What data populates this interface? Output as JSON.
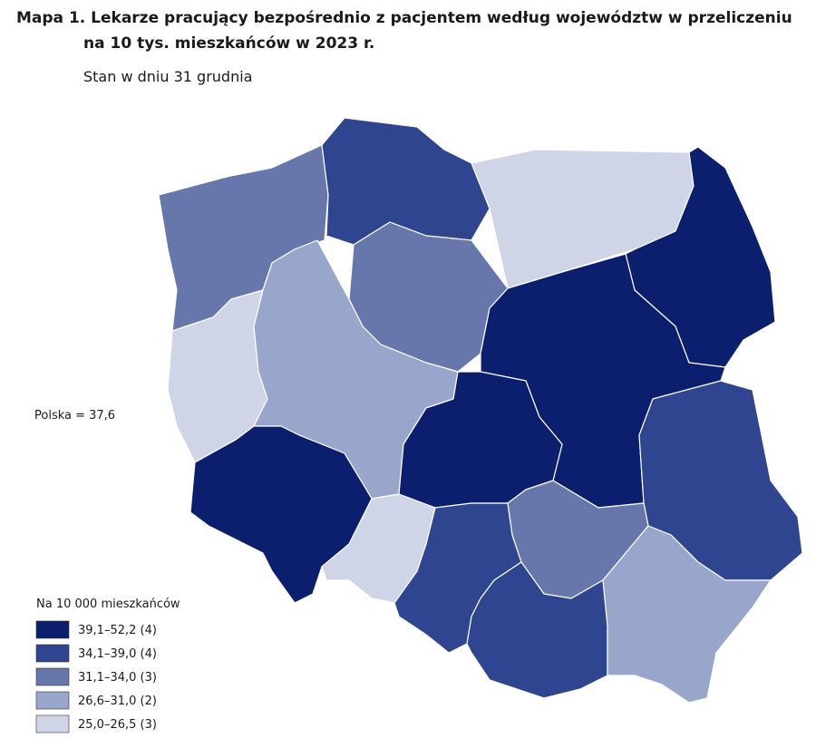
{
  "header": {
    "title_line1": "Mapa 1. Lekarze pracujący bezpośrednio z pacjentem według województw w przeliczeniu",
    "title_line2": "na 10 tys. mieszkańców w 2023 r.",
    "subtitle": "Stan w dniu 31 grudnia"
  },
  "map": {
    "note": "Polska = 37,6"
  },
  "legend": {
    "title": "Na 10 000 mieszkańców",
    "items": [
      {
        "label": "39,1–52,2 (4)",
        "color": "#0b1f6e"
      },
      {
        "label": "34,1–39,0 (4)",
        "color": "#2f4590"
      },
      {
        "label": "31,1–34,0 (3)",
        "color": "#6877ab"
      },
      {
        "label": "26,6–31,0 (2)",
        "color": "#99a6cc"
      },
      {
        "label": "25,0–26,5 (3)",
        "color": "#cfd4e6"
      }
    ]
  }
}
